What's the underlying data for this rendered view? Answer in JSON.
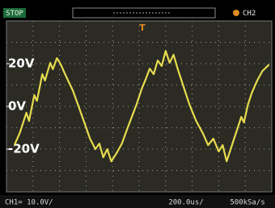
{
  "chart_data": {
    "type": "line",
    "status": "STOP",
    "channel": "CH2",
    "trigger_marker": "T",
    "vertical_scale": "CH1= 10.0V/",
    "time_scale": "200.0us/",
    "sample_rate": "500kSa/s",
    "x": [
      60,
      100,
      150,
      170,
      210,
      230,
      270,
      290,
      330,
      350,
      380,
      410,
      450,
      500,
      550,
      600,
      630,
      670,
      700,
      730,
      760,
      790,
      830,
      870,
      910,
      980,
      1020,
      1050,
      1080,
      1110,
      1140,
      1170,
      1200,
      1230,
      1260,
      1290,
      1330,
      1380,
      1430,
      1480,
      1520,
      1560,
      1600,
      1630,
      1660,
      1690,
      1720,
      1740,
      1770,
      1790,
      1820,
      1850,
      1890,
      1930,
      1980
    ],
    "series": [
      {
        "color": "#e6dc4e",
        "values": [
          -18.1,
          -12.5,
          -3,
          -6.8,
          5.3,
          2.6,
          15.1,
          12.1,
          20.4,
          17.4,
          22.6,
          19.6,
          14,
          7.5,
          -1.1,
          -9.8,
          -15.1,
          -20,
          -17.4,
          -23.8,
          -20,
          -25.7,
          -21.9,
          -17.4,
          -10.6,
          0.8,
          8.3,
          12.8,
          17.7,
          15.1,
          21.5,
          18.9,
          26,
          20.4,
          24.2,
          17.7,
          10.2,
          0.8,
          -6.8,
          -12.5,
          -18.1,
          -15.1,
          -21.1,
          -18.1,
          -25.7,
          -20,
          -14.3,
          -10.6,
          -4.9,
          -7.5,
          0.8,
          6.4,
          12.1,
          16.6,
          19.6
        ]
      }
    ],
    "xlim": [
      0,
      2000
    ],
    "ylim": [
      -40,
      40
    ],
    "yticks": [
      {
        "value": 20,
        "label": "20V"
      },
      {
        "value": 0,
        "label": "0V"
      },
      {
        "value": -20,
        "label": "-20V"
      }
    ]
  }
}
